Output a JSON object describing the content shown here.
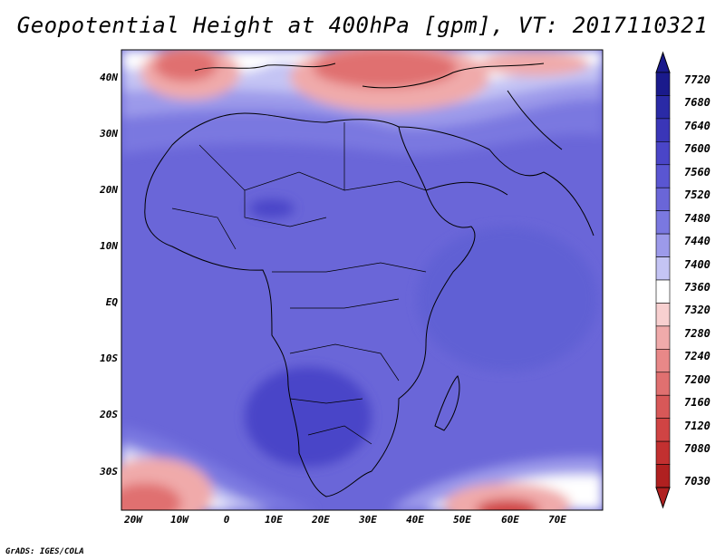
{
  "title": "Geopotential Height at 400hPa [gpm], VT: 2017110321",
  "credit": "GrADS: IGES/COLA",
  "lat_labels": [
    "40N",
    "30N",
    "20N",
    "10N",
    "EQ",
    "10S",
    "20S",
    "30S"
  ],
  "lon_labels": [
    "20W",
    "10W",
    "0",
    "10E",
    "20E",
    "30E",
    "40E",
    "50E",
    "60E",
    "70E"
  ],
  "colorbar": {
    "levels": [
      "7720",
      "7680",
      "7640",
      "7600",
      "7560",
      "7520",
      "7480",
      "7440",
      "7400",
      "7360",
      "7320",
      "7280",
      "7240",
      "7200",
      "7160",
      "7120",
      "7080",
      "7030"
    ],
    "colors": [
      "#1a1a8c",
      "#2a2aa6",
      "#3a36b8",
      "#4a45c8",
      "#5a56d2",
      "#6a66d8",
      "#7a78e0",
      "#9c9aea",
      "#c4c4f4",
      "#ffffff",
      "#f8d0d0",
      "#f0aaaa",
      "#e88888",
      "#e07070",
      "#d85858",
      "#d04444",
      "#c23030",
      "#b02020"
    ]
  },
  "legend_extremes": {
    "top_color": "#1a1a8c",
    "bottom_color": "#b02020"
  }
}
